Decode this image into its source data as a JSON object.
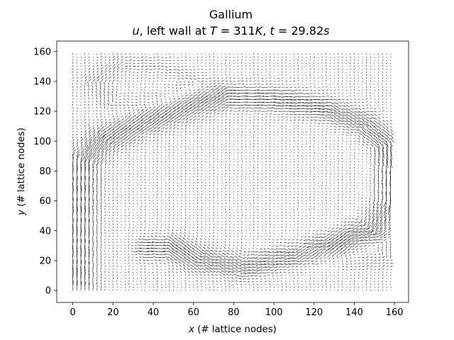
{
  "chart_data": {
    "type": "quiver",
    "title": "Gallium",
    "subtitle": {
      "var": "u",
      "text1": ", left wall at ",
      "T_sym": "T",
      "T_val": " = 311",
      "T_unit": "K",
      "sep": ", ",
      "t_sym": "t",
      "t_val": " = 29.82",
      "t_unit": "s"
    },
    "xlabel": {
      "var": "x",
      "rest": " (# lattice nodes)"
    },
    "ylabel": {
      "var": "y",
      "rest": " (# lattice nodes)"
    },
    "xlim": [
      -8,
      167
    ],
    "ylim": [
      -8,
      167
    ],
    "xticks": [
      0,
      20,
      40,
      60,
      80,
      100,
      120,
      140,
      160
    ],
    "yticks": [
      0,
      20,
      40,
      60,
      80,
      100,
      120,
      140,
      160
    ],
    "grid": false,
    "legend": "none",
    "lattice": {
      "n_x": 160,
      "n_y": 160,
      "sample_step": 2
    },
    "flow": {
      "description_free": false,
      "main_jet_path": [
        [
          2,
          0
        ],
        [
          3,
          40
        ],
        [
          5,
          85
        ],
        [
          15,
          100
        ],
        [
          35,
          112
        ],
        [
          55,
          122
        ],
        [
          75,
          130
        ],
        [
          100,
          128
        ],
        [
          125,
          122
        ],
        [
          145,
          112
        ],
        [
          155,
          100
        ],
        [
          158,
          85
        ],
        [
          157,
          60
        ],
        [
          150,
          42
        ],
        [
          130,
          30
        ],
        [
          105,
          22
        ],
        [
          85,
          15
        ],
        [
          65,
          20
        ],
        [
          50,
          28
        ],
        [
          40,
          28
        ]
      ],
      "upper_loop_path": [
        [
          10,
          140
        ],
        [
          25,
          152
        ],
        [
          45,
          150
        ],
        [
          60,
          142
        ],
        [
          45,
          128
        ],
        [
          20,
          124
        ],
        [
          10,
          140
        ]
      ],
      "lower_loop_path": [
        [
          120,
          28
        ],
        [
          140,
          18
        ],
        [
          158,
          20
        ],
        [
          158,
          35
        ],
        [
          140,
          40
        ],
        [
          120,
          28
        ]
      ],
      "max_speed": 1.0
    },
    "colors": {
      "arrows": "#000000",
      "background": "#ffffff",
      "axes": "#000000"
    }
  }
}
